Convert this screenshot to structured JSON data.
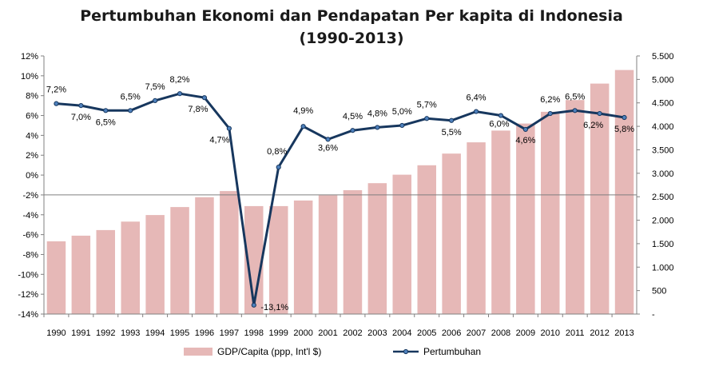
{
  "chart_data": {
    "type": "bar+line",
    "title": "Pertumbuhan Ekonomi dan Pendapatan Per kapita di Indonesia",
    "subtitle": "(1990-2013)",
    "categories": [
      "1990",
      "1991",
      "1992",
      "1993",
      "1994",
      "1995",
      "1996",
      "1997",
      "1998",
      "1999",
      "2000",
      "2001",
      "2002",
      "2003",
      "2004",
      "2005",
      "2006",
      "2007",
      "2008",
      "2009",
      "2010",
      "2011",
      "2012",
      "2013"
    ],
    "series": [
      {
        "name": "GDP/Capita (ppp, Int'l $)",
        "type": "bar",
        "axis": "right",
        "color": "#e6b8b7",
        "values": [
          1550,
          1670,
          1790,
          1970,
          2110,
          2280,
          2490,
          2620,
          2300,
          2300,
          2420,
          2530,
          2640,
          2790,
          2970,
          3170,
          3420,
          3660,
          3910,
          4060,
          4310,
          4560,
          4910,
          5200
        ]
      },
      {
        "name": "Pertumbuhan",
        "type": "line",
        "axis": "left",
        "color": "#17375e",
        "values": [
          7.2,
          7.0,
          6.5,
          6.5,
          7.5,
          8.2,
          7.8,
          4.7,
          -13.1,
          0.8,
          4.9,
          3.6,
          4.5,
          4.8,
          5.0,
          5.7,
          5.5,
          6.4,
          6.0,
          4.6,
          6.2,
          6.5,
          6.2,
          5.8
        ],
        "labels": [
          "7,2%",
          "7,0%",
          "6,5%",
          "6,5%",
          "7,5%",
          "8,2%",
          "7,8%",
          "4,7%",
          "-13,1%",
          "0,8%",
          "4,9%",
          "3,6%",
          "4,5%",
          "4,8%",
          "5,0%",
          "5,7%",
          "5,5%",
          "6,4%",
          "6,0%",
          "4,6%",
          "6,2%",
          "6,5%",
          "6,2%",
          "5,8%"
        ]
      }
    ],
    "y_left": {
      "min": -14,
      "max": 12,
      "step": 2,
      "tick_labels": [
        "-14%",
        "-12%",
        "-10%",
        "-8%",
        "-6%",
        "-4%",
        "-2%",
        "0%",
        "2%",
        "4%",
        "6%",
        "8%",
        "10%",
        "12%"
      ]
    },
    "y_right": {
      "min": 0,
      "max": 5500,
      "step": 500,
      "tick_labels": [
        "-",
        "500",
        "1.000",
        "1.500",
        "2.000",
        "2.500",
        "3.000",
        "3.500",
        "4.000",
        "4.500",
        "5.000",
        "5.500"
      ]
    },
    "reference_line_y_left": -2,
    "grid": false,
    "legend_position": "bottom"
  }
}
